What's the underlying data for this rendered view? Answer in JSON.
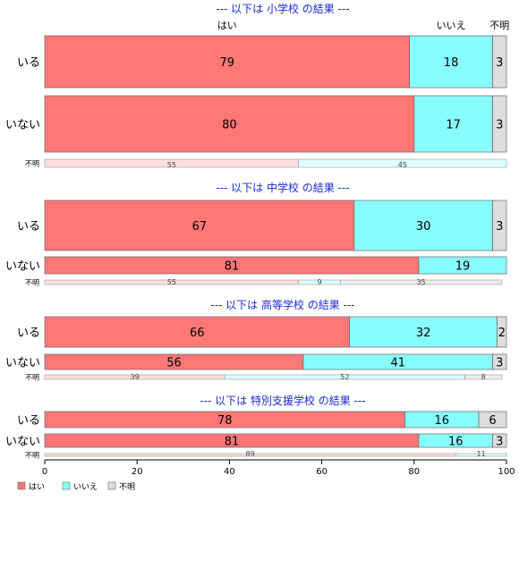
{
  "chart_data": {
    "type": "bar",
    "orientation": "horizontal",
    "stacked": true,
    "categories_legend": [
      "はい",
      "いいえ",
      "不明"
    ],
    "colors": [
      "#ff7777",
      "#88ffff",
      "#dddddd"
    ],
    "colors_light": [
      "#ffdddd",
      "#ddffff",
      "#eeeeee"
    ],
    "top_category_labels": [
      "はい",
      "いいえ",
      "不明"
    ],
    "xlim": [
      0,
      100
    ],
    "xticks": [
      0,
      20,
      40,
      60,
      80,
      100
    ],
    "legend_position": "bottom-left",
    "panels": [
      {
        "title": "--- 以下は 小学校 の結果 ---",
        "rows": [
          {
            "label": "いる",
            "values": [
              79,
              18,
              3
            ],
            "size": "large"
          },
          {
            "label": "いない",
            "values": [
              80,
              17,
              3
            ],
            "size": "large"
          },
          {
            "label": "不明",
            "values": [
              55,
              45,
              0
            ],
            "size": "small"
          }
        ]
      },
      {
        "title": "--- 以下は 中学校 の結果 ---",
        "rows": [
          {
            "label": "いる",
            "values": [
              67,
              30,
              3
            ],
            "size": "large"
          },
          {
            "label": "いない",
            "values": [
              81,
              19,
              0
            ],
            "size": "medium"
          },
          {
            "label": "不明",
            "values": [
              55,
              9,
              35
            ],
            "size": "small"
          }
        ]
      },
      {
        "title": "--- 以下は 高等学校 の結果 ---",
        "rows": [
          {
            "label": "いる",
            "values": [
              66,
              32,
              2
            ],
            "size": "large"
          },
          {
            "label": "いない",
            "values": [
              56,
              41,
              3
            ],
            "size": "medium"
          },
          {
            "label": "不明",
            "values": [
              39,
              52,
              8
            ],
            "size": "small"
          }
        ]
      },
      {
        "title": "--- 以下は 特別支援学校 の結果 ---",
        "rows": [
          {
            "label": "いる",
            "values": [
              78,
              16,
              6
            ],
            "size": "medium"
          },
          {
            "label": "いない",
            "values": [
              81,
              16,
              3
            ],
            "size": "medium"
          },
          {
            "label": "不明",
            "values": [
              89,
              11,
              0
            ],
            "size": "small"
          }
        ]
      }
    ]
  }
}
